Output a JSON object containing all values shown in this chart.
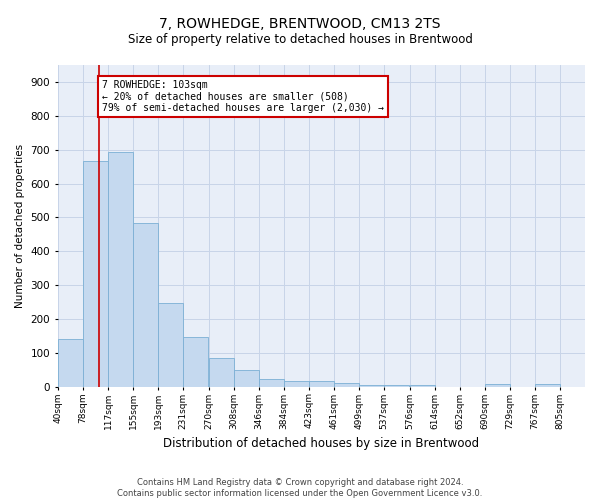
{
  "title": "7, ROWHEDGE, BRENTWOOD, CM13 2TS",
  "subtitle": "Size of property relative to detached houses in Brentwood",
  "xlabel": "Distribution of detached houses by size in Brentwood",
  "ylabel": "Number of detached properties",
  "bar_color": "#c5d9ef",
  "bar_edge_color": "#7bafd4",
  "background_color": "#ffffff",
  "plot_bg_color": "#e8eef8",
  "grid_color": "#c8d4e8",
  "annotation_box_color": "#cc0000",
  "annotation_text": "7 ROWHEDGE: 103sqm\n← 20% of detached houses are smaller (508)\n79% of semi-detached houses are larger (2,030) →",
  "property_line_x": 103,
  "categories": [
    40,
    78,
    117,
    155,
    193,
    231,
    270,
    308,
    346,
    384,
    423,
    461,
    499,
    537,
    576,
    614,
    652,
    690,
    729,
    767,
    805
  ],
  "bar_heights": [
    140,
    668,
    693,
    483,
    248,
    148,
    85,
    50,
    23,
    18,
    18,
    10,
    5,
    5,
    5,
    0,
    0,
    8,
    0,
    8,
    0
  ],
  "ylim": [
    0,
    950
  ],
  "yticks": [
    0,
    100,
    200,
    300,
    400,
    500,
    600,
    700,
    800,
    900
  ],
  "footnote": "Contains HM Land Registry data © Crown copyright and database right 2024.\nContains public sector information licensed under the Open Government Licence v3.0.",
  "bin_width": 38
}
